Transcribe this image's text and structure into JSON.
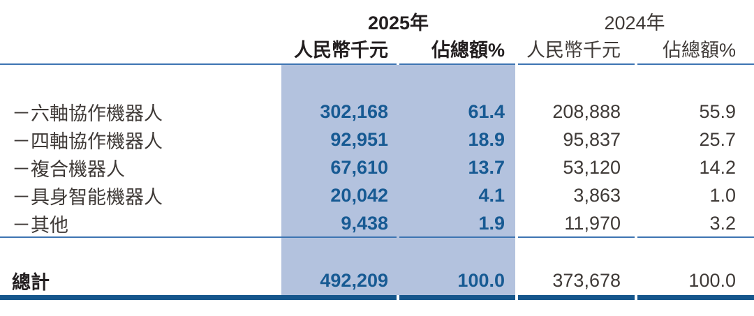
{
  "colors": {
    "highlight": "#b3c2de",
    "accent_blue": "#175a93",
    "rule_blue": "#3d74b2",
    "thick_rule": "#15568c",
    "text_dark": "#3f3a37",
    "text_black": "#231f20"
  },
  "table": {
    "year_groups": [
      {
        "label": "2025年",
        "col_headers": [
          "人民幣千元",
          "佔總額%"
        ]
      },
      {
        "label": "2024年",
        "col_headers": [
          "人民幣千元",
          "佔總額%"
        ]
      }
    ],
    "rows": [
      {
        "label": "－六軸協作機器人",
        "a25": "302,168",
        "p25": "61.4",
        "a24": "208,888",
        "p24": "55.9"
      },
      {
        "label": "－四軸協作機器人",
        "a25": "92,951",
        "p25": "18.9",
        "a24": "95,837",
        "p24": "25.7"
      },
      {
        "label": "－複合機器人",
        "a25": "67,610",
        "p25": "13.7",
        "a24": "53,120",
        "p24": "14.2"
      },
      {
        "label": "－具身智能機器人",
        "a25": "20,042",
        "p25": "4.1",
        "a24": "3,863",
        "p24": "1.0"
      },
      {
        "label": "－其他",
        "a25": "9,438",
        "p25": "1.9",
        "a24": "11,970",
        "p24": "3.2"
      }
    ],
    "total": {
      "label": "總計",
      "a25": "492,209",
      "p25": "100.0",
      "a24": "373,678",
      "p24": "100.0"
    }
  }
}
